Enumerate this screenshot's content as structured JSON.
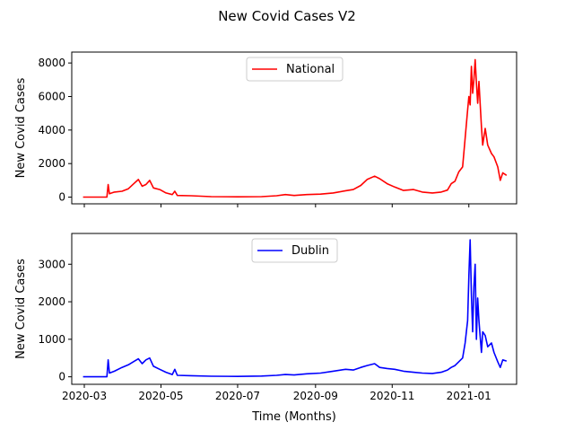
{
  "figure": {
    "title": "New Covid Cases V2",
    "xlabel": "Time (Months)"
  },
  "chart_data": [
    {
      "type": "line",
      "title": "",
      "xlabel": "",
      "ylabel": "New Covid Cases",
      "x_ticks": [
        "2020-03",
        "2020-05",
        "2020-07",
        "2020-09",
        "2020-11",
        "2021-01"
      ],
      "y_ticks": [
        "0",
        "2000",
        "4000",
        "6000",
        "8000"
      ],
      "xlim": [
        "2020-02-20",
        "2021-02-08"
      ],
      "ylim": [
        -400,
        8650
      ],
      "legend_position": "top-center",
      "series": [
        {
          "name": "National",
          "color": "#ff0000",
          "points": [
            [
              "2020-02-29",
              0
            ],
            [
              "2020-03-10",
              0
            ],
            [
              "2020-03-19",
              0
            ],
            [
              "2020-03-20",
              750
            ],
            [
              "2020-03-21",
              200
            ],
            [
              "2020-03-25",
              300
            ],
            [
              "2020-03-31",
              350
            ],
            [
              "2020-04-05",
              500
            ],
            [
              "2020-04-10",
              850
            ],
            [
              "2020-04-13",
              1050
            ],
            [
              "2020-04-16",
              650
            ],
            [
              "2020-04-19",
              750
            ],
            [
              "2020-04-22",
              1000
            ],
            [
              "2020-04-25",
              550
            ],
            [
              "2020-04-30",
              450
            ],
            [
              "2020-05-05",
              250
            ],
            [
              "2020-05-10",
              150
            ],
            [
              "2020-05-12",
              350
            ],
            [
              "2020-05-14",
              100
            ],
            [
              "2020-05-25",
              80
            ],
            [
              "2020-06-10",
              30
            ],
            [
              "2020-07-01",
              20
            ],
            [
              "2020-07-20",
              30
            ],
            [
              "2020-08-01",
              80
            ],
            [
              "2020-08-08",
              150
            ],
            [
              "2020-08-15",
              100
            ],
            [
              "2020-08-25",
              150
            ],
            [
              "2020-09-05",
              180
            ],
            [
              "2020-09-15",
              250
            ],
            [
              "2020-09-25",
              380
            ],
            [
              "2020-10-01",
              450
            ],
            [
              "2020-10-07",
              700
            ],
            [
              "2020-10-12",
              1050
            ],
            [
              "2020-10-18",
              1250
            ],
            [
              "2020-10-22",
              1100
            ],
            [
              "2020-10-28",
              800
            ],
            [
              "2020-11-03",
              600
            ],
            [
              "2020-11-10",
              400
            ],
            [
              "2020-11-18",
              450
            ],
            [
              "2020-11-25",
              300
            ],
            [
              "2020-12-03",
              250
            ],
            [
              "2020-12-10",
              300
            ],
            [
              "2020-12-15",
              420
            ],
            [
              "2020-12-18",
              800
            ],
            [
              "2020-12-21",
              950
            ],
            [
              "2020-12-24",
              1500
            ],
            [
              "2020-12-27",
              1800
            ],
            [
              "2020-12-29",
              3500
            ],
            [
              "2020-12-31",
              5200
            ],
            [
              "2021-01-01",
              6000
            ],
            [
              "2021-01-02",
              5500
            ],
            [
              "2021-01-03",
              7800
            ],
            [
              "2021-01-04",
              6200
            ],
            [
              "2021-01-05",
              7000
            ],
            [
              "2021-01-06",
              8200
            ],
            [
              "2021-01-07",
              6800
            ],
            [
              "2021-01-08",
              5600
            ],
            [
              "2021-01-09",
              6900
            ],
            [
              "2021-01-11",
              4200
            ],
            [
              "2021-01-12",
              3100
            ],
            [
              "2021-01-14",
              4100
            ],
            [
              "2021-01-16",
              3100
            ],
            [
              "2021-01-19",
              2600
            ],
            [
              "2021-01-21",
              2400
            ],
            [
              "2021-01-24",
              1800
            ],
            [
              "2021-01-26",
              1000
            ],
            [
              "2021-01-28",
              1450
            ],
            [
              "2021-01-31",
              1300
            ]
          ]
        }
      ]
    },
    {
      "type": "line",
      "title": "",
      "xlabel": "Time (Months)",
      "ylabel": "New Covid Cases",
      "x_ticks": [
        "2020-03",
        "2020-05",
        "2020-07",
        "2020-09",
        "2020-11",
        "2021-01"
      ],
      "y_ticks": [
        "0",
        "1000",
        "2000",
        "3000"
      ],
      "xlim": [
        "2020-02-20",
        "2021-02-08"
      ],
      "ylim": [
        -200,
        3820
      ],
      "legend_position": "top-center",
      "series": [
        {
          "name": "Dublin",
          "color": "#0000ff",
          "points": [
            [
              "2020-02-29",
              0
            ],
            [
              "2020-03-10",
              0
            ],
            [
              "2020-03-19",
              0
            ],
            [
              "2020-03-20",
              450
            ],
            [
              "2020-03-21",
              100
            ],
            [
              "2020-03-25",
              150
            ],
            [
              "2020-03-31",
              250
            ],
            [
              "2020-04-05",
              320
            ],
            [
              "2020-04-10",
              420
            ],
            [
              "2020-04-13",
              480
            ],
            [
              "2020-04-16",
              350
            ],
            [
              "2020-04-19",
              450
            ],
            [
              "2020-04-22",
              500
            ],
            [
              "2020-04-25",
              280
            ],
            [
              "2020-04-30",
              200
            ],
            [
              "2020-05-05",
              120
            ],
            [
              "2020-05-10",
              60
            ],
            [
              "2020-05-12",
              200
            ],
            [
              "2020-05-14",
              40
            ],
            [
              "2020-05-25",
              30
            ],
            [
              "2020-06-10",
              15
            ],
            [
              "2020-07-01",
              10
            ],
            [
              "2020-07-20",
              20
            ],
            [
              "2020-08-01",
              40
            ],
            [
              "2020-08-08",
              60
            ],
            [
              "2020-08-15",
              50
            ],
            [
              "2020-08-25",
              80
            ],
            [
              "2020-09-05",
              100
            ],
            [
              "2020-09-15",
              150
            ],
            [
              "2020-09-25",
              200
            ],
            [
              "2020-10-01",
              180
            ],
            [
              "2020-10-07",
              250
            ],
            [
              "2020-10-12",
              300
            ],
            [
              "2020-10-18",
              350
            ],
            [
              "2020-10-22",
              250
            ],
            [
              "2020-10-28",
              220
            ],
            [
              "2020-11-03",
              200
            ],
            [
              "2020-11-10",
              150
            ],
            [
              "2020-11-18",
              120
            ],
            [
              "2020-11-25",
              100
            ],
            [
              "2020-12-03",
              90
            ],
            [
              "2020-12-10",
              120
            ],
            [
              "2020-12-15",
              180
            ],
            [
              "2020-12-18",
              250
            ],
            [
              "2020-12-21",
              300
            ],
            [
              "2020-12-24",
              400
            ],
            [
              "2020-12-27",
              500
            ],
            [
              "2020-12-29",
              900
            ],
            [
              "2020-12-31",
              1500
            ],
            [
              "2021-01-01",
              2700
            ],
            [
              "2021-01-02",
              3650
            ],
            [
              "2021-01-03",
              2200
            ],
            [
              "2021-01-04",
              1200
            ],
            [
              "2021-01-05",
              2400
            ],
            [
              "2021-01-06",
              3000
            ],
            [
              "2021-01-07",
              1000
            ],
            [
              "2021-01-08",
              2100
            ],
            [
              "2021-01-09",
              1500
            ],
            [
              "2021-01-11",
              650
            ],
            [
              "2021-01-12",
              1200
            ],
            [
              "2021-01-14",
              1100
            ],
            [
              "2021-01-16",
              800
            ],
            [
              "2021-01-19",
              900
            ],
            [
              "2021-01-21",
              650
            ],
            [
              "2021-01-24",
              400
            ],
            [
              "2021-01-26",
              250
            ],
            [
              "2021-01-28",
              450
            ],
            [
              "2021-01-31",
              420
            ]
          ]
        }
      ]
    }
  ]
}
